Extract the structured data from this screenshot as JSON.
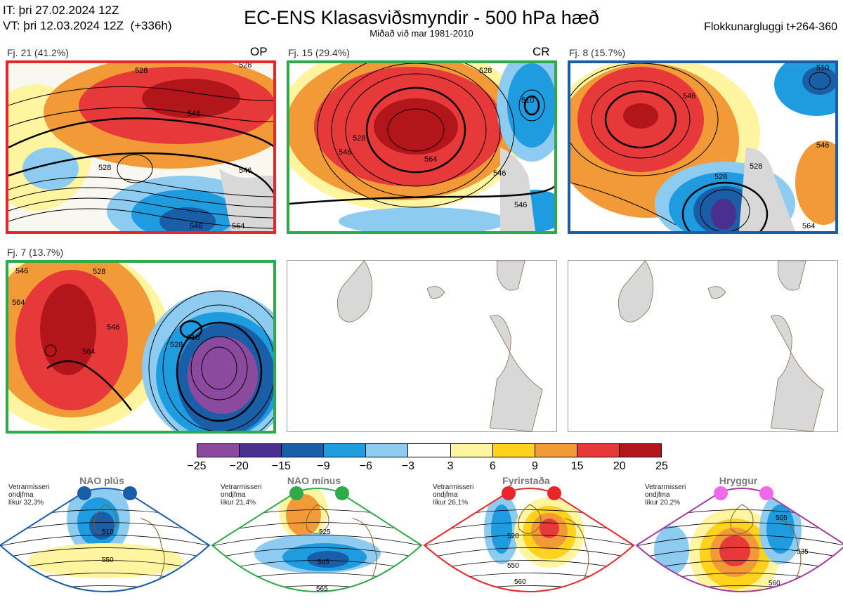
{
  "header": {
    "it_line": "IT: þri 27.02.2024 12Z",
    "vt_line": "VT: þri 12.03.2024 12Z  (+336h)",
    "title": "EC-ENS Klasasviðsmyndir - 500 hPa hæð",
    "subtitle": "Miðað við mar 1981-2010",
    "window": "Flokkunargluggi t+264-360"
  },
  "panels": [
    {
      "label": "Fj. 21 (41.2%)",
      "code": "OP",
      "border": "#e8262a",
      "contours": [
        "528",
        "546",
        "528",
        "546",
        "528",
        "546",
        "564"
      ]
    },
    {
      "label": "Fj. 15 (29.4%)",
      "code": "CR",
      "border": "#2eaa4a",
      "contours": [
        "528",
        "546",
        "510",
        "564",
        "546",
        "546",
        "528"
      ]
    },
    {
      "label": "Fj. 8 (15.7%)",
      "code": "",
      "border": "#1a5ea8",
      "contours": [
        "546",
        "528",
        "528",
        "546",
        "564",
        "510"
      ]
    },
    {
      "label": "Fj. 7 (13.7%)",
      "code": "",
      "border": "#2eaa4a",
      "contours": [
        "546",
        "528",
        "510",
        "528",
        "564",
        "546",
        "564"
      ]
    }
  ],
  "colorbar": {
    "colors": [
      "#8c4a9e",
      "#4a2f8f",
      "#1a5ea8",
      "#1f9be0",
      "#8ecbf0",
      "#ffffff",
      "#fff5a0",
      "#ffd21e",
      "#f29a37",
      "#e8393a",
      "#b2151a"
    ],
    "ticks": [
      "−25",
      "−20",
      "−15",
      "−9",
      "−6",
      "−3",
      "3",
      "6",
      "9",
      "15",
      "20",
      "25"
    ]
  },
  "regimes": [
    {
      "title": "NAO plús",
      "meta": [
        "Vetrarmisseri",
        "ondjfma",
        "líkur 32,3%"
      ],
      "color": "#1a5ea8",
      "contours": [
        "510",
        "550"
      ]
    },
    {
      "title": "NAO mínus",
      "meta": [
        "Vetrarmisseri",
        "ondjfma",
        "líkur 21,4%"
      ],
      "color": "#2eaa4a",
      "contours": [
        "525",
        "545",
        "565"
      ]
    },
    {
      "title": "Fyrirstaða",
      "meta": [
        "Vetrarmisseri",
        "ondjfma",
        "líkur 26,1%"
      ],
      "color": "#e8262a",
      "contours": [
        "520",
        "550",
        "560"
      ]
    },
    {
      "title": "Hryggur",
      "meta": [
        "Vetrarmisseri",
        "ondjfma",
        "líkur 20,2%"
      ],
      "color": "#a63aa0",
      "contours": [
        "505",
        "535",
        "560"
      ]
    }
  ]
}
